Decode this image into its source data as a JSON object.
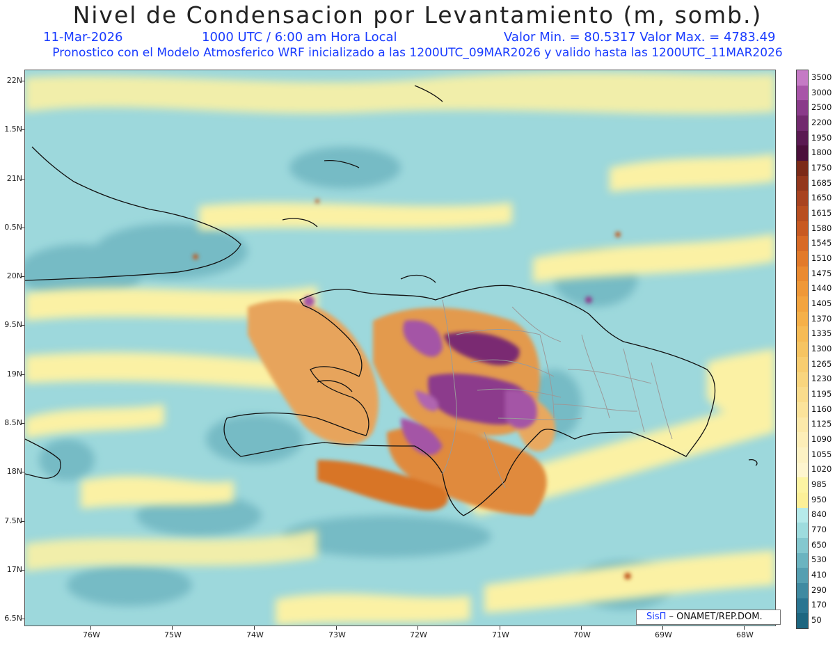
{
  "header": {
    "title": "Nivel de Condensacion por Levantamiento (m, somb.)",
    "date": "11-Mar-2026",
    "time": "1000 UTC / 6:00 am Hora Local",
    "range": "Valor Min. = 80.5317   Valor Max. = 4783.49",
    "subtitle": "Pronostico con el Modelo Atmosferico WRF inicializado a las 1200UTC_09MAR2026 y valido hasta las  1200UTC_11MAR2026"
  },
  "axes": {
    "lat_labels": [
      "22N",
      "1.5N",
      "21N",
      "0.5N",
      "20N",
      "9.5N",
      "19N",
      "8.5N",
      "18N",
      "7.5N",
      "17N",
      "6.5N"
    ],
    "lon_labels": [
      "76W",
      "75W",
      "74W",
      "73W",
      "72W",
      "71W",
      "70W",
      "69W",
      "68W"
    ]
  },
  "colorbar": {
    "labels": [
      "3500",
      "3000",
      "2500",
      "2200",
      "1950",
      "1800",
      "1750",
      "1685",
      "1650",
      "1615",
      "1580",
      "1545",
      "1510",
      "1475",
      "1440",
      "1405",
      "1370",
      "1335",
      "1300",
      "1265",
      "1230",
      "1195",
      "1160",
      "1125",
      "1090",
      "1055",
      "1020",
      "985",
      "950",
      "840",
      "770",
      "650",
      "530",
      "410",
      "290",
      "170",
      "50"
    ],
    "colors": [
      "#c57ac5",
      "#a855a8",
      "#8a3b8a",
      "#722a6e",
      "#5a1a52",
      "#4a0f3a",
      "#7b2a18",
      "#93371c",
      "#a84320",
      "#b84e20",
      "#c85a22",
      "#d86a26",
      "#e27a2a",
      "#ea8a30",
      "#ef9838",
      "#f3a43f",
      "#f5b049",
      "#f6bb55",
      "#f6c462",
      "#f8cd70",
      "#f9d57e",
      "#fadc8c",
      "#fbe39b",
      "#fce9aa",
      "#fdeeb8",
      "#fdf2c4",
      "#fef5cf",
      "#fdf4a3",
      "#fcf098",
      "#b6eaea",
      "#9edcde",
      "#84c8cf",
      "#6bb4c0",
      "#559fb1",
      "#3f8aa1",
      "#2a7591",
      "#1d6680"
    ]
  },
  "map": {
    "label": "Hispaniola region",
    "colors": {
      "sea_teal": "#9dd8dc",
      "teal_dark": "#6ab2be",
      "yellow": "#fbf1a4",
      "orange": "#e0893c",
      "dark_orange": "#c05a22",
      "purple": "#8c3b8c",
      "deep_purple": "#6a2266"
    }
  },
  "credit": {
    "logo": "SisΠ",
    "org": " – ONAMET/REP.DOM."
  }
}
